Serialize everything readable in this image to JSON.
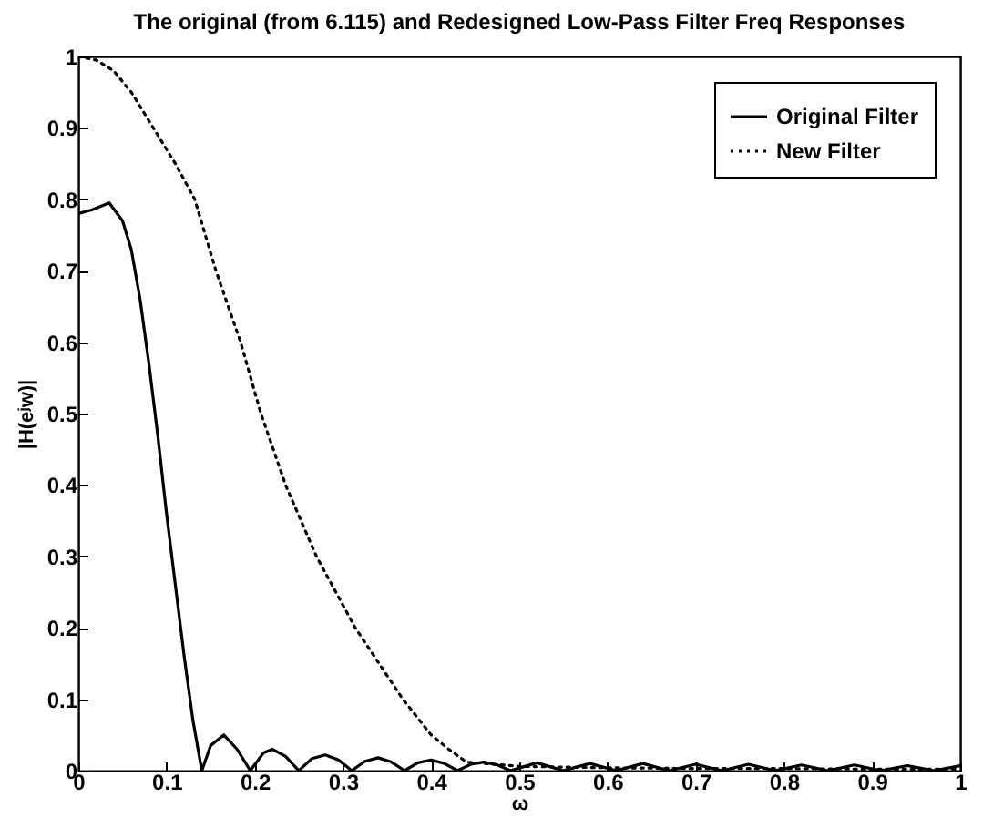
{
  "chart_data": {
    "type": "line",
    "title": "The original (from 6.115) and Redesigned Low-Pass Filter Freq Responses",
    "xlabel": "ω",
    "ylabel": "|H(eʲw)|",
    "xlim": [
      0,
      1
    ],
    "xticks": [
      0,
      0.1,
      0.2,
      0.3,
      0.4,
      0.5,
      0.6,
      0.7,
      0.8,
      0.9,
      1
    ],
    "ylim": [
      0,
      1
    ],
    "yticks": [
      0,
      0.1,
      0.2,
      0.3,
      0.4,
      0.5,
      0.6,
      0.7,
      0.8,
      0.9,
      1
    ],
    "grid": false,
    "legend": "top right",
    "marker": "none",
    "series": [
      {
        "name": "Original Filter",
        "color": "#000000",
        "line_style": "solid",
        "x": [
          0,
          0.015,
          0.035,
          0.05,
          0.06,
          0.07,
          0.08,
          0.09,
          0.1,
          0.11,
          0.12,
          0.13,
          0.14,
          0.15,
          0.165,
          0.18,
          0.195,
          0.21,
          0.22,
          0.235,
          0.25,
          0.265,
          0.28,
          0.295,
          0.31,
          0.325,
          0.34,
          0.355,
          0.37,
          0.385,
          0.4,
          0.415,
          0.43,
          0.445,
          0.46,
          0.475,
          0.49,
          0.52,
          0.55,
          0.58,
          0.61,
          0.64,
          0.67,
          0.7,
          0.73,
          0.76,
          0.79,
          0.82,
          0.85,
          0.88,
          0.91,
          0.94,
          0.97,
          1
        ],
        "values": [
          0.78,
          0.785,
          0.795,
          0.77,
          0.73,
          0.66,
          0.57,
          0.47,
          0.36,
          0.26,
          0.16,
          0.07,
          0,
          0.035,
          0.05,
          0.03,
          0,
          0.025,
          0.03,
          0.02,
          0,
          0.017,
          0.022,
          0.015,
          0,
          0.013,
          0.018,
          0.012,
          0,
          0.011,
          0.015,
          0.01,
          0,
          0.009,
          0.012,
          0.008,
          0,
          0.011,
          0,
          0.01,
          0,
          0.01,
          0,
          0.009,
          0,
          0.009,
          0,
          0.008,
          0,
          0.008,
          0,
          0.007,
          0,
          0.007
        ]
      },
      {
        "name": "New Filter",
        "color": "#000000",
        "line_style": "dotted",
        "x": [
          0,
          0.02,
          0.04,
          0.06,
          0.085,
          0.11,
          0.132,
          0.156,
          0.184,
          0.207,
          0.235,
          0.27,
          0.314,
          0.368,
          0.4,
          0.42,
          0.44,
          0.5,
          0.6,
          0.7,
          0.8,
          0.9,
          1
        ],
        "values": [
          1,
          0.995,
          0.98,
          0.95,
          0.9,
          0.85,
          0.8,
          0.7,
          0.6,
          0.5,
          0.4,
          0.3,
          0.2,
          0.1,
          0.05,
          0.03,
          0.012,
          0.006,
          0.004,
          0.003,
          0.003,
          0.002,
          0.002
        ]
      }
    ]
  }
}
